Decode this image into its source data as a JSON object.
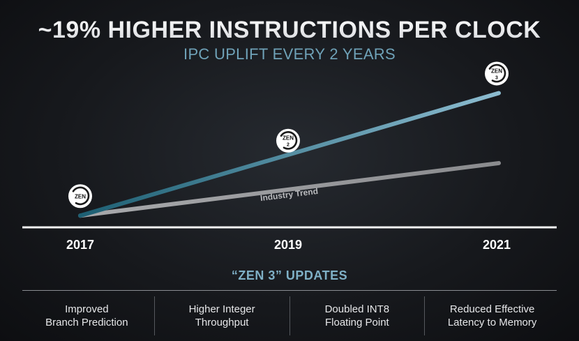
{
  "chart_data": {
    "type": "line",
    "title": "~19% HIGHER INSTRUCTIONS PER CLOCK",
    "subtitle": "IPC UPLIFT EVERY 2 YEARS",
    "x": [
      "2017",
      "2019",
      "2021"
    ],
    "series": [
      {
        "name": "",
        "color": "#7fb4c8",
        "values": [
          1.0,
          1.19,
          1.42
        ],
        "point_labels": [
          "ZEN",
          "ZEN 2",
          "ZEN 3"
        ]
      },
      {
        "name": "Industry Trend",
        "color": "#8c8d90",
        "values": [
          1.0,
          1.09,
          1.18
        ]
      }
    ],
    "ylim": [
      0.96,
      1.5
    ],
    "grid": false
  },
  "updates": {
    "title": "“ZEN 3” UPDATES",
    "items": [
      "Improved\nBranch Prediction",
      "Higher Integer\nThroughput",
      "Doubled INT8\nFloating Point",
      "Reduced Effective\nLatency to Memory"
    ]
  },
  "colors": {
    "zen_line": "#7fb4c8",
    "zen_line_start": "#1d5f73",
    "trend_line": "#8c8d90",
    "accent_text": "#6fa2b8"
  },
  "icons": [
    "zen-logo-icon",
    "zen2-logo-icon",
    "zen3-logo-icon"
  ]
}
